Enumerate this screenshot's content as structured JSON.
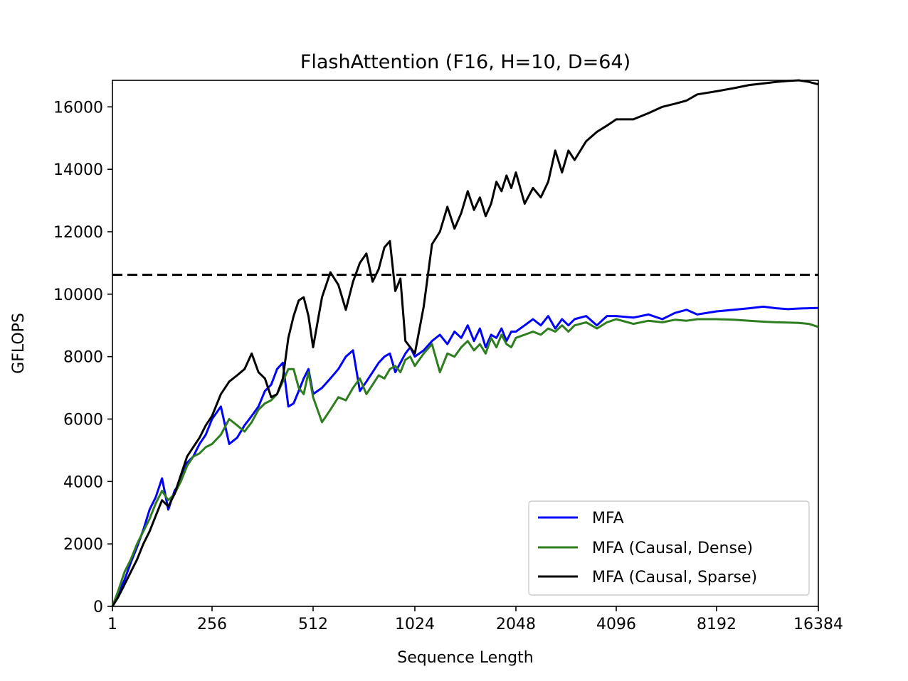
{
  "chart_data": {
    "type": "line",
    "title": "FlashAttention (F16, H=10, D=64)",
    "xlabel": "Sequence Length",
    "ylabel": "GFLOPS",
    "x_tick_labels": [
      "1",
      "256",
      "512",
      "1024",
      "2048",
      "4096",
      "8192",
      "16384"
    ],
    "y_tick_labels": [
      "0",
      "2000",
      "4000",
      "6000",
      "8000",
      "10000",
      "12000",
      "14000",
      "16000"
    ],
    "y_ticks": [
      0,
      2000,
      4000,
      6000,
      8000,
      10000,
      12000,
      14000,
      16000
    ],
    "ylim": [
      0,
      16850
    ],
    "grid": false,
    "legend_position": "lower right",
    "reference_line": {
      "y": 10620,
      "style": "dashed",
      "color": "#000000"
    },
    "series": [
      {
        "name": "MFA",
        "color": "#0000ff",
        "points": [
          [
            1,
            0
          ],
          [
            16,
            400
          ],
          [
            32,
            850
          ],
          [
            48,
            1400
          ],
          [
            64,
            1900
          ],
          [
            80,
            2450
          ],
          [
            96,
            3100
          ],
          [
            112,
            3500
          ],
          [
            128,
            4100
          ],
          [
            144,
            3100
          ],
          [
            160,
            3700
          ],
          [
            176,
            4000
          ],
          [
            192,
            4600
          ],
          [
            208,
            4800
          ],
          [
            224,
            5200
          ],
          [
            240,
            5500
          ],
          [
            256,
            6000
          ],
          [
            272,
            6400
          ],
          [
            288,
            5200
          ],
          [
            304,
            5400
          ],
          [
            320,
            5800
          ],
          [
            336,
            6100
          ],
          [
            352,
            6400
          ],
          [
            368,
            6900
          ],
          [
            384,
            7100
          ],
          [
            400,
            7600
          ],
          [
            416,
            7800
          ],
          [
            432,
            6400
          ],
          [
            448,
            6500
          ],
          [
            464,
            6900
          ],
          [
            480,
            7300
          ],
          [
            496,
            7600
          ],
          [
            512,
            6800
          ],
          [
            544,
            7000
          ],
          [
            576,
            7300
          ],
          [
            608,
            7600
          ],
          [
            640,
            8000
          ],
          [
            672,
            8200
          ],
          [
            704,
            6900
          ],
          [
            736,
            7200
          ],
          [
            768,
            7500
          ],
          [
            800,
            7800
          ],
          [
            832,
            8000
          ],
          [
            864,
            8100
          ],
          [
            896,
            7500
          ],
          [
            928,
            7800
          ],
          [
            960,
            8100
          ],
          [
            992,
            8300
          ],
          [
            1024,
            8000
          ],
          [
            1088,
            8200
          ],
          [
            1152,
            8500
          ],
          [
            1216,
            8700
          ],
          [
            1280,
            8400
          ],
          [
            1344,
            8800
          ],
          [
            1408,
            8600
          ],
          [
            1472,
            9000
          ],
          [
            1536,
            8500
          ],
          [
            1600,
            8900
          ],
          [
            1664,
            8300
          ],
          [
            1728,
            8700
          ],
          [
            1792,
            8600
          ],
          [
            1856,
            8900
          ],
          [
            1920,
            8500
          ],
          [
            1984,
            8800
          ],
          [
            2048,
            8800
          ],
          [
            2176,
            9000
          ],
          [
            2304,
            9200
          ],
          [
            2432,
            9000
          ],
          [
            2560,
            9300
          ],
          [
            2688,
            8900
          ],
          [
            2816,
            9200
          ],
          [
            2944,
            9000
          ],
          [
            3072,
            9200
          ],
          [
            3328,
            9300
          ],
          [
            3584,
            9000
          ],
          [
            3840,
            9300
          ],
          [
            4096,
            9300
          ],
          [
            4608,
            9250
          ],
          [
            5120,
            9350
          ],
          [
            5632,
            9200
          ],
          [
            6144,
            9400
          ],
          [
            6656,
            9500
          ],
          [
            7168,
            9350
          ],
          [
            8192,
            9450
          ],
          [
            9216,
            9500
          ],
          [
            10240,
            9550
          ],
          [
            11264,
            9600
          ],
          [
            12288,
            9550
          ],
          [
            13312,
            9520
          ],
          [
            14336,
            9540
          ],
          [
            15360,
            9550
          ],
          [
            16384,
            9560
          ]
        ]
      },
      {
        "name": "MFA (Causal, Dense)",
        "color": "#2e7d1e",
        "points": [
          [
            1,
            0
          ],
          [
            16,
            500
          ],
          [
            32,
            1100
          ],
          [
            48,
            1500
          ],
          [
            64,
            2000
          ],
          [
            80,
            2400
          ],
          [
            96,
            2800
          ],
          [
            112,
            3300
          ],
          [
            128,
            3700
          ],
          [
            144,
            3400
          ],
          [
            160,
            3600
          ],
          [
            176,
            4000
          ],
          [
            192,
            4500
          ],
          [
            208,
            4800
          ],
          [
            224,
            4900
          ],
          [
            240,
            5100
          ],
          [
            256,
            5200
          ],
          [
            272,
            5500
          ],
          [
            288,
            6000
          ],
          [
            304,
            5800
          ],
          [
            320,
            5600
          ],
          [
            336,
            5900
          ],
          [
            352,
            6300
          ],
          [
            368,
            6500
          ],
          [
            384,
            6600
          ],
          [
            400,
            6800
          ],
          [
            416,
            7200
          ],
          [
            432,
            7600
          ],
          [
            448,
            7600
          ],
          [
            464,
            7000
          ],
          [
            480,
            6800
          ],
          [
            496,
            7500
          ],
          [
            512,
            6700
          ],
          [
            544,
            5900
          ],
          [
            576,
            6300
          ],
          [
            608,
            6700
          ],
          [
            640,
            6600
          ],
          [
            672,
            7000
          ],
          [
            704,
            7300
          ],
          [
            736,
            6800
          ],
          [
            768,
            7100
          ],
          [
            800,
            7400
          ],
          [
            832,
            7300
          ],
          [
            864,
            7600
          ],
          [
            896,
            7700
          ],
          [
            928,
            7500
          ],
          [
            960,
            7900
          ],
          [
            992,
            8000
          ],
          [
            1024,
            7700
          ],
          [
            1088,
            8100
          ],
          [
            1152,
            8400
          ],
          [
            1216,
            7500
          ],
          [
            1280,
            8100
          ],
          [
            1344,
            8000
          ],
          [
            1408,
            8300
          ],
          [
            1472,
            8500
          ],
          [
            1536,
            8200
          ],
          [
            1600,
            8400
          ],
          [
            1664,
            8100
          ],
          [
            1728,
            8600
          ],
          [
            1792,
            8300
          ],
          [
            1856,
            8700
          ],
          [
            1920,
            8400
          ],
          [
            1984,
            8300
          ],
          [
            2048,
            8600
          ],
          [
            2176,
            8700
          ],
          [
            2304,
            8800
          ],
          [
            2432,
            8700
          ],
          [
            2560,
            8900
          ],
          [
            2688,
            8800
          ],
          [
            2816,
            9000
          ],
          [
            2944,
            8800
          ],
          [
            3072,
            9000
          ],
          [
            3328,
            9100
          ],
          [
            3584,
            8900
          ],
          [
            3840,
            9100
          ],
          [
            4096,
            9200
          ],
          [
            4608,
            9050
          ],
          [
            5120,
            9150
          ],
          [
            5632,
            9100
          ],
          [
            6144,
            9180
          ],
          [
            6656,
            9150
          ],
          [
            7168,
            9200
          ],
          [
            8192,
            9200
          ],
          [
            9216,
            9180
          ],
          [
            10240,
            9150
          ],
          [
            11264,
            9120
          ],
          [
            12288,
            9100
          ],
          [
            13312,
            9090
          ],
          [
            14336,
            9080
          ],
          [
            15360,
            9050
          ],
          [
            16384,
            8950
          ]
        ]
      },
      {
        "name": "MFA (Causal, Sparse)",
        "color": "#000000",
        "points": [
          [
            1,
            0
          ],
          [
            16,
            300
          ],
          [
            32,
            700
          ],
          [
            48,
            1100
          ],
          [
            64,
            1500
          ],
          [
            80,
            2000
          ],
          [
            96,
            2400
          ],
          [
            112,
            2900
          ],
          [
            128,
            3400
          ],
          [
            144,
            3200
          ],
          [
            160,
            3600
          ],
          [
            176,
            4200
          ],
          [
            192,
            4800
          ],
          [
            208,
            5100
          ],
          [
            224,
            5400
          ],
          [
            240,
            5800
          ],
          [
            256,
            6100
          ],
          [
            272,
            6800
          ],
          [
            288,
            7200
          ],
          [
            304,
            7400
          ],
          [
            320,
            7600
          ],
          [
            336,
            8100
          ],
          [
            352,
            7500
          ],
          [
            368,
            7300
          ],
          [
            384,
            6700
          ],
          [
            400,
            6800
          ],
          [
            416,
            7300
          ],
          [
            432,
            8600
          ],
          [
            448,
            9300
          ],
          [
            464,
            9800
          ],
          [
            480,
            9900
          ],
          [
            496,
            9300
          ],
          [
            512,
            8300
          ],
          [
            544,
            9900
          ],
          [
            576,
            10700
          ],
          [
            608,
            10300
          ],
          [
            640,
            9500
          ],
          [
            672,
            10400
          ],
          [
            704,
            11000
          ],
          [
            736,
            11300
          ],
          [
            768,
            10400
          ],
          [
            800,
            10800
          ],
          [
            832,
            11500
          ],
          [
            864,
            11700
          ],
          [
            896,
            10100
          ],
          [
            928,
            10500
          ],
          [
            960,
            8500
          ],
          [
            992,
            8300
          ],
          [
            1024,
            8100
          ],
          [
            1088,
            9600
          ],
          [
            1152,
            11600
          ],
          [
            1216,
            12000
          ],
          [
            1280,
            12800
          ],
          [
            1344,
            12100
          ],
          [
            1408,
            12600
          ],
          [
            1472,
            13300
          ],
          [
            1536,
            12700
          ],
          [
            1600,
            13100
          ],
          [
            1664,
            12500
          ],
          [
            1728,
            12900
          ],
          [
            1792,
            13600
          ],
          [
            1856,
            13300
          ],
          [
            1920,
            13800
          ],
          [
            1984,
            13400
          ],
          [
            2048,
            13900
          ],
          [
            2176,
            12900
          ],
          [
            2304,
            13400
          ],
          [
            2432,
            13100
          ],
          [
            2560,
            13600
          ],
          [
            2688,
            14600
          ],
          [
            2816,
            13900
          ],
          [
            2944,
            14600
          ],
          [
            3072,
            14300
          ],
          [
            3328,
            14900
          ],
          [
            3584,
            15200
          ],
          [
            3840,
            15400
          ],
          [
            4096,
            15600
          ],
          [
            4608,
            15600
          ],
          [
            5120,
            15800
          ],
          [
            5632,
            16000
          ],
          [
            6144,
            16100
          ],
          [
            6656,
            16200
          ],
          [
            7168,
            16400
          ],
          [
            8192,
            16500
          ],
          [
            9216,
            16600
          ],
          [
            10240,
            16700
          ],
          [
            11264,
            16750
          ],
          [
            12288,
            16800
          ],
          [
            13312,
            16830
          ],
          [
            14336,
            16850
          ],
          [
            15360,
            16800
          ],
          [
            16384,
            16720
          ]
        ]
      }
    ]
  }
}
